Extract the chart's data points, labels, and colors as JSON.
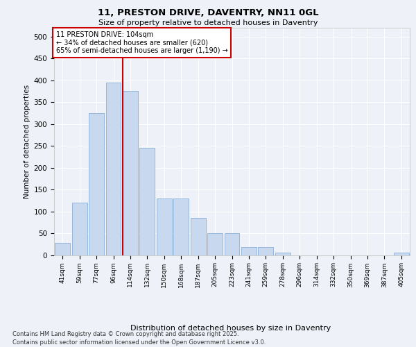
{
  "title_line1": "11, PRESTON DRIVE, DAVENTRY, NN11 0GL",
  "title_line2": "Size of property relative to detached houses in Daventry",
  "xlabel": "Distribution of detached houses by size in Daventry",
  "ylabel": "Number of detached properties",
  "categories": [
    "41sqm",
    "59sqm",
    "77sqm",
    "96sqm",
    "114sqm",
    "132sqm",
    "150sqm",
    "168sqm",
    "187sqm",
    "205sqm",
    "223sqm",
    "241sqm",
    "259sqm",
    "278sqm",
    "296sqm",
    "314sqm",
    "332sqm",
    "350sqm",
    "369sqm",
    "387sqm",
    "405sqm"
  ],
  "values": [
    28,
    120,
    325,
    395,
    375,
    245,
    130,
    130,
    85,
    50,
    50,
    18,
    18,
    5,
    0,
    0,
    0,
    0,
    0,
    0,
    5
  ],
  "bar_color": "#c8d8ee",
  "bar_edge_color": "#8ab0d8",
  "vline_x": 3.55,
  "vline_color": "#cc0000",
  "annotation_text": "11 PRESTON DRIVE: 104sqm\n← 34% of detached houses are smaller (620)\n65% of semi-detached houses are larger (1,190) →",
  "annotation_box_color": "#ffffff",
  "annotation_edge_color": "#cc0000",
  "ylim": [
    0,
    520
  ],
  "yticks": [
    0,
    50,
    100,
    150,
    200,
    250,
    300,
    350,
    400,
    450,
    500
  ],
  "footer_line1": "Contains HM Land Registry data © Crown copyright and database right 2025.",
  "footer_line2": "Contains public sector information licensed under the Open Government Licence v3.0.",
  "background_color": "#eef2f8",
  "plot_bg_color": "#eef2f8"
}
